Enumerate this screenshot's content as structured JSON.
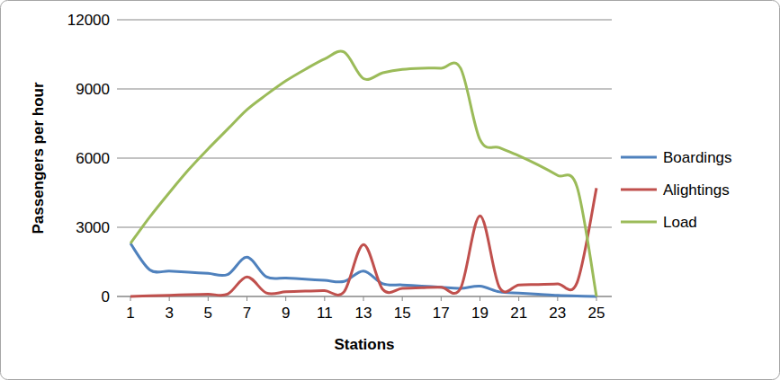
{
  "chart_data": {
    "type": "line",
    "x_label": "Stations",
    "y_label": "Passengers per hour",
    "x": [
      1,
      2,
      3,
      4,
      5,
      6,
      7,
      8,
      9,
      10,
      11,
      12,
      13,
      14,
      15,
      16,
      17,
      18,
      19,
      20,
      21,
      22,
      23,
      24,
      25
    ],
    "xlim": [
      1,
      25
    ],
    "xticks": [
      1,
      3,
      5,
      7,
      9,
      11,
      13,
      15,
      17,
      19,
      21,
      23,
      25
    ],
    "ylim": [
      0,
      12000
    ],
    "yticks": [
      0,
      3000,
      6000,
      9000,
      12000
    ],
    "grid": true,
    "legend": "right",
    "line_style": "smooth",
    "series": [
      {
        "name": "Boardings",
        "color": "#4f81bd",
        "values": [
          2300,
          1150,
          1100,
          1050,
          1000,
          950,
          1700,
          850,
          800,
          750,
          700,
          650,
          1100,
          550,
          500,
          450,
          400,
          350,
          450,
          200,
          150,
          100,
          50,
          20,
          0
        ]
      },
      {
        "name": "Alightings",
        "color": "#c0504d",
        "values": [
          0,
          30,
          50,
          80,
          100,
          100,
          850,
          150,
          200,
          230,
          250,
          200,
          2250,
          300,
          350,
          380,
          400,
          350,
          3500,
          400,
          500,
          520,
          550,
          600,
          4700
        ]
      },
      {
        "name": "Load",
        "color": "#9bbb59",
        "values": [
          2300,
          3450,
          4500,
          5500,
          6400,
          7250,
          8100,
          8750,
          9350,
          9850,
          10300,
          10600,
          9450,
          9700,
          9850,
          9900,
          9900,
          9900,
          6800,
          6450,
          6100,
          5700,
          5250,
          4750,
          0
        ]
      }
    ]
  }
}
